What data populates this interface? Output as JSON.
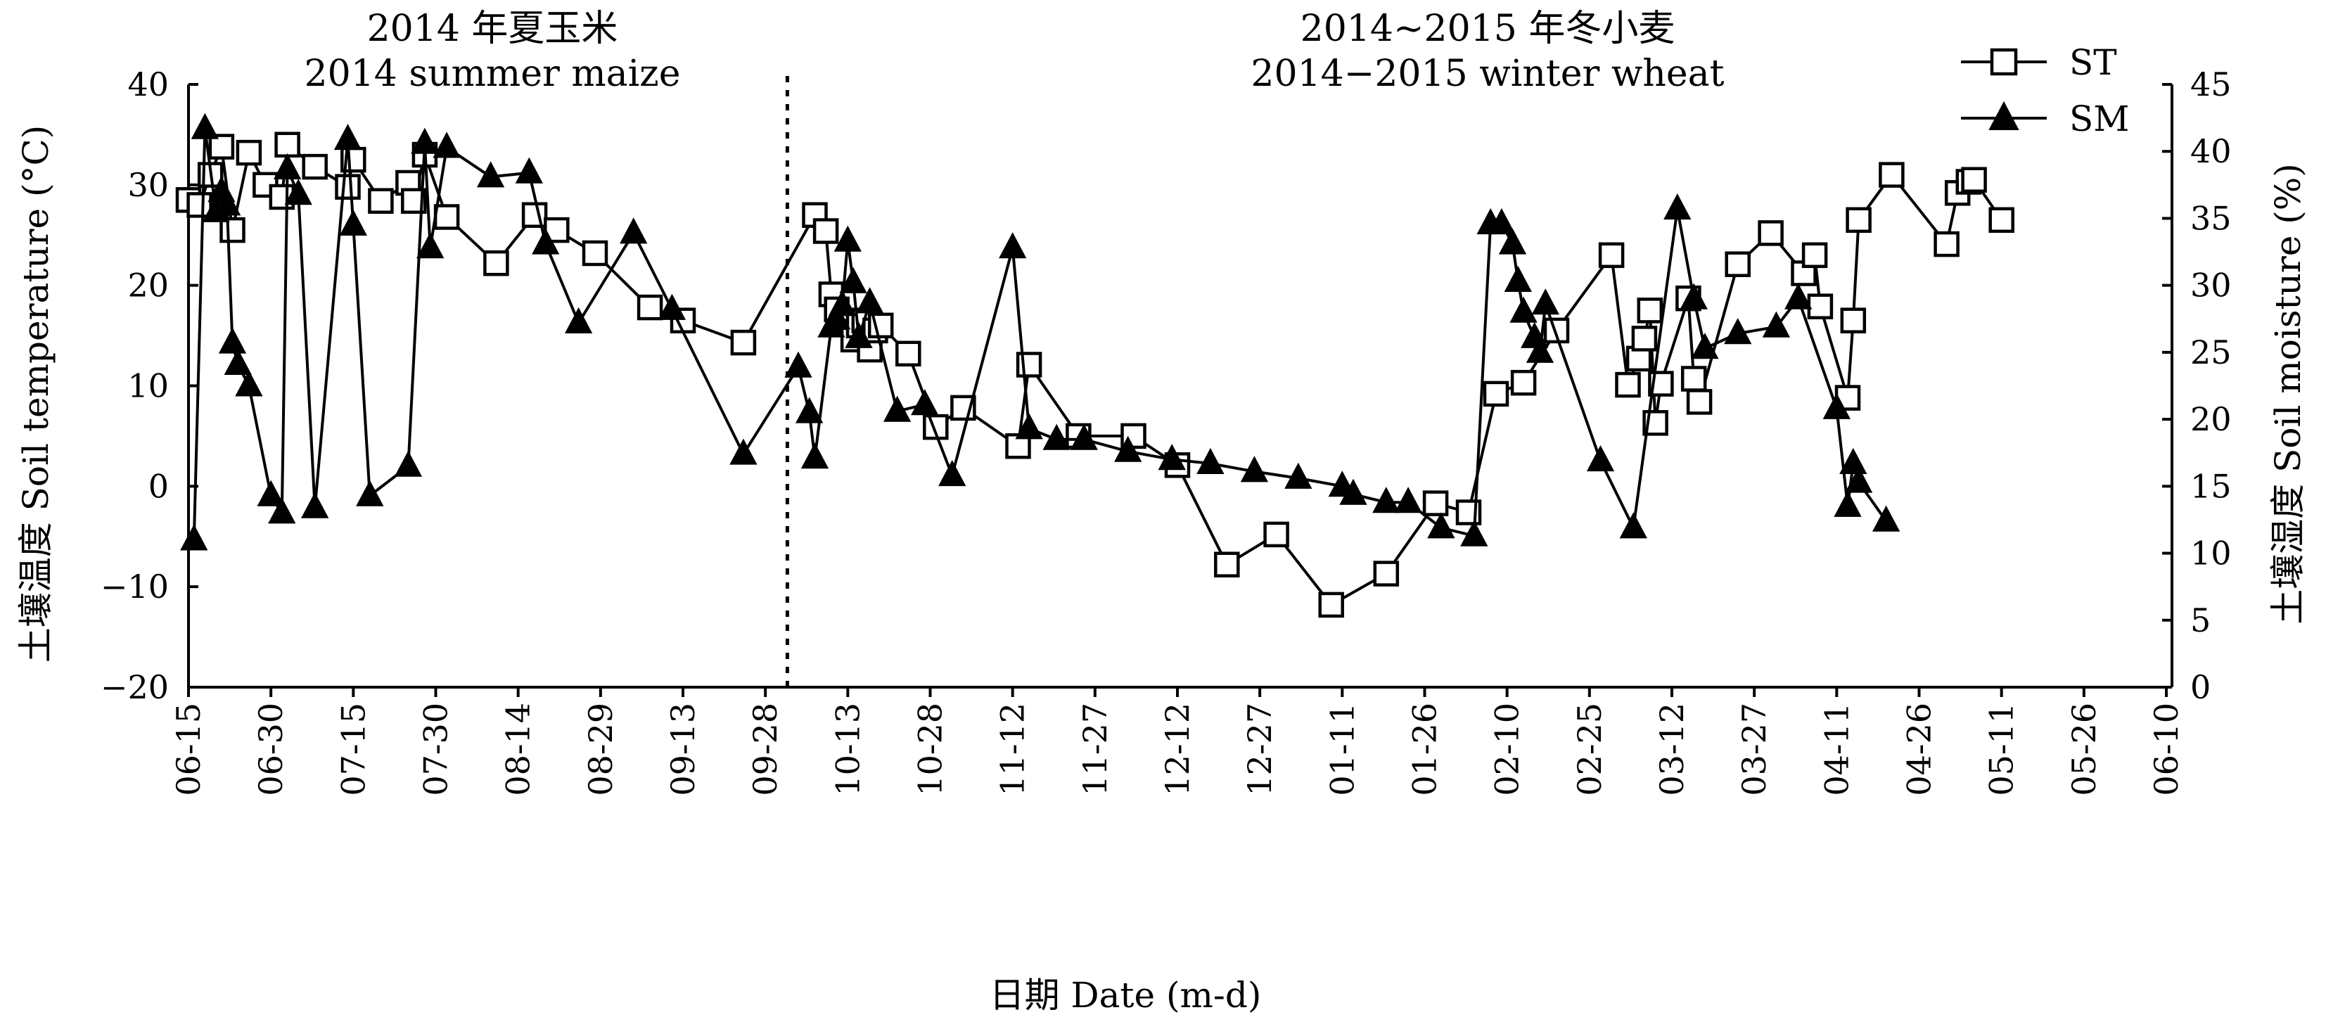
{
  "chart_data": {
    "type": "line",
    "periods": [
      {
        "label_cn": "2014 年夏玉米",
        "label_en": "2014 summer maize"
      },
      {
        "label_cn": "2014~2015 年冬小麦",
        "label_en": "2014−2015 winter wheat"
      }
    ],
    "xlabel": "日期 Date (m-d)",
    "ylabel_left": "土壤温度 Soil temperature (°C)",
    "ylabel_right": "土壤湿度 Soil moisture (%)",
    "x_ticks": [
      "06-15",
      "06-30",
      "07-15",
      "07-30",
      "08-14",
      "08-29",
      "09-13",
      "09-28",
      "10-13",
      "10-28",
      "11-12",
      "11-27",
      "12-12",
      "12-27",
      "01-11",
      "01-26",
      "02-10",
      "02-25",
      "03-12",
      "03-27",
      "04-11",
      "04-26",
      "05-11",
      "05-26",
      "06-10"
    ],
    "y_left": {
      "ylim": [
        -20,
        40
      ],
      "ticks": [
        -20,
        -10,
        0,
        10,
        20,
        30,
        40
      ],
      "tick_labels": [
        "−20",
        "−10",
        "0",
        "10",
        "20",
        "30",
        "40"
      ]
    },
    "y_right": {
      "ylim": [
        0,
        45
      ],
      "ticks": [
        0,
        5,
        10,
        15,
        20,
        25,
        30,
        35,
        40,
        45
      ],
      "tick_labels": [
        "0",
        "5",
        "10",
        "15",
        "20",
        "25",
        "30",
        "35",
        "40",
        "45"
      ]
    },
    "divider_day": 109,
    "legend": [
      {
        "name": "ST",
        "marker": "square"
      },
      {
        "name": "SM",
        "marker": "triangle"
      }
    ],
    "x_unit": "days since 06-15",
    "series": [
      {
        "name": "ST",
        "axis": "left",
        "points": [
          [
            0,
            28.5
          ],
          [
            2,
            28
          ],
          [
            4,
            31
          ],
          [
            6,
            33.8
          ],
          [
            8,
            25.5
          ],
          [
            11,
            33.2
          ],
          [
            14,
            30
          ],
          [
            17,
            28.8
          ],
          [
            18,
            34
          ],
          [
            23,
            31.8
          ],
          [
            29,
            29.8
          ],
          [
            30,
            32.5
          ],
          [
            35,
            28.4
          ],
          [
            40,
            30.2
          ],
          [
            41,
            28.4
          ],
          [
            43,
            33
          ],
          [
            47,
            26.8
          ],
          [
            56,
            22.2
          ],
          [
            63,
            27
          ],
          [
            67,
            25.5
          ],
          [
            74,
            23.2
          ],
          [
            84,
            17.8
          ],
          [
            90,
            16.5
          ],
          [
            101,
            14.3
          ],
          [
            114,
            27
          ],
          [
            116,
            25.4
          ],
          [
            117,
            19.1
          ],
          [
            118,
            17.6
          ],
          [
            121,
            14.6
          ],
          [
            122,
            16
          ],
          [
            123,
            16.5
          ],
          [
            124,
            13.6
          ],
          [
            125,
            15.5
          ],
          [
            126,
            16
          ],
          [
            131,
            13.2
          ],
          [
            136,
            5.9
          ],
          [
            141,
            7.8
          ],
          [
            151,
            4
          ],
          [
            153,
            12.1
          ],
          [
            162,
            5
          ],
          [
            172,
            5
          ],
          [
            180,
            2.1
          ],
          [
            189,
            -7.8
          ],
          [
            198,
            -4.8
          ],
          [
            208,
            -11.8
          ],
          [
            218,
            -8.7
          ],
          [
            227,
            -1.7
          ],
          [
            233,
            -2.6
          ],
          [
            238,
            9.2
          ],
          [
            243,
            10.3
          ],
          [
            249,
            15.5
          ],
          [
            259,
            23
          ],
          [
            262,
            10.1
          ],
          [
            264,
            12.7
          ],
          [
            265,
            14.7
          ],
          [
            266,
            17.5
          ],
          [
            267,
            6.3
          ],
          [
            268,
            10.2
          ],
          [
            273,
            18.7
          ],
          [
            274,
            10.7
          ],
          [
            275,
            8.4
          ],
          [
            282,
            22.1
          ],
          [
            288,
            25.2
          ],
          [
            294,
            21.2
          ],
          [
            296,
            23
          ],
          [
            297,
            17.9
          ],
          [
            302,
            8.8
          ],
          [
            303,
            16.5
          ],
          [
            304,
            26.5
          ],
          [
            310,
            31
          ],
          [
            320,
            24.1
          ],
          [
            322,
            29.2
          ],
          [
            324,
            30.3
          ],
          [
            325,
            30.5
          ],
          [
            330,
            26.5
          ]
        ]
      },
      {
        "name": "SM",
        "axis": "right",
        "points": [
          [
            1,
            11
          ],
          [
            3,
            41.7
          ],
          [
            5,
            35.5
          ],
          [
            6,
            37
          ],
          [
            7,
            36
          ],
          [
            8,
            25.7
          ],
          [
            9,
            24.1
          ],
          [
            11,
            22.5
          ],
          [
            15,
            14.3
          ],
          [
            17,
            13
          ],
          [
            18,
            38.7
          ],
          [
            20,
            36.8
          ],
          [
            23,
            13.4
          ],
          [
            29,
            40.9
          ],
          [
            30,
            34.5
          ],
          [
            33,
            14.3
          ],
          [
            40,
            16.5
          ],
          [
            43,
            40.6
          ],
          [
            44,
            32.8
          ],
          [
            47,
            40.3
          ],
          [
            55,
            38.1
          ],
          [
            62,
            38.4
          ],
          [
            65,
            33.1
          ],
          [
            71,
            27.2
          ],
          [
            81,
            33.9
          ],
          [
            88,
            28.2
          ],
          [
            101,
            17.4
          ],
          [
            111,
            23.9
          ],
          [
            113,
            20.5
          ],
          [
            114,
            17.1
          ],
          [
            117,
            26.9
          ],
          [
            118,
            27.5
          ],
          [
            119,
            28.5
          ],
          [
            120,
            33.3
          ],
          [
            121,
            30.2
          ],
          [
            122,
            26.1
          ],
          [
            124,
            28.7
          ],
          [
            129,
            20.6
          ],
          [
            134,
            21.1
          ],
          [
            139,
            15.8
          ],
          [
            150,
            32.8
          ],
          [
            153,
            19.3
          ],
          [
            158,
            18.5
          ],
          [
            163,
            18.5
          ],
          [
            171,
            17.6
          ],
          [
            179,
            17
          ],
          [
            186,
            16.7
          ],
          [
            194,
            16.1
          ],
          [
            202,
            15.6
          ],
          [
            210,
            15
          ],
          [
            212,
            14.4
          ],
          [
            218,
            13.8
          ],
          [
            222,
            13.8
          ],
          [
            228,
            11.9
          ],
          [
            234,
            11.3
          ],
          [
            237,
            34.6
          ],
          [
            239,
            34.6
          ],
          [
            241,
            33.1
          ],
          [
            242,
            30.3
          ],
          [
            243,
            28
          ],
          [
            245,
            26.1
          ],
          [
            246,
            25
          ],
          [
            247,
            28.6
          ],
          [
            257,
            16.9
          ],
          [
            263,
            11.9
          ],
          [
            271,
            35.7
          ],
          [
            274,
            29
          ],
          [
            276,
            25.3
          ],
          [
            282,
            26.4
          ],
          [
            289,
            26.9
          ],
          [
            293,
            29
          ],
          [
            300,
            20.8
          ],
          [
            302,
            13.5
          ],
          [
            303,
            16.7
          ],
          [
            304,
            15.3
          ],
          [
            309,
            12.4
          ]
        ]
      }
    ]
  }
}
